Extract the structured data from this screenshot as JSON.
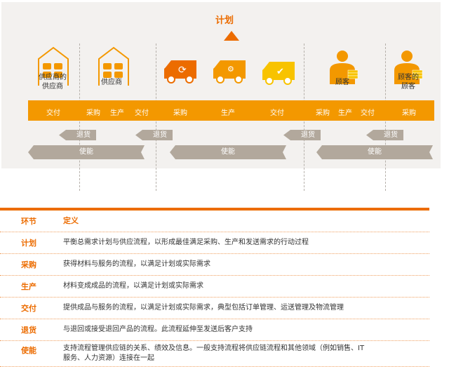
{
  "diagram": {
    "title": "计划",
    "actors": [
      "供应商的\n供应商",
      "供应商",
      "顾客",
      "顾客的\n顾客"
    ],
    "bar_labels": [
      "交付",
      "采购",
      "生产",
      "交付",
      "采购",
      "生产",
      "交付",
      "采购",
      "生产",
      "交付",
      "采购"
    ],
    "return_label": "退货",
    "enable_label": "使能",
    "colors": {
      "orange": "#f39800",
      "dark_orange": "#ec6c00",
      "yellow": "#f8c300",
      "gray": "#b2a89c"
    }
  },
  "table": {
    "headers": [
      "环节",
      "定义"
    ],
    "rows": [
      {
        "term": "计划",
        "def": "平衡总需求计划与供应流程，以形成最佳满足采购、生产和发送需求的行动过程"
      },
      {
        "term": "采购",
        "def": "获得材料与服务的流程，以满足计划或实际需求"
      },
      {
        "term": "生产",
        "def": "材料变成成品的流程，以满足计划或实际需求"
      },
      {
        "term": "交付",
        "def": "提供成品与服务的流程，以满足计划或实际需求，典型包括订单管理、运送管理及物流管理"
      },
      {
        "term": "退货",
        "def": "与退回或接受退回产品的流程。此流程延伸至发送后客户支持"
      },
      {
        "term": "使能",
        "def": "支持流程管理供应链的关系、绩效及信息。一般支持流程将供应链流程和其他领域（例如销售、IT服务、人力资源）连接在一起"
      }
    ]
  }
}
